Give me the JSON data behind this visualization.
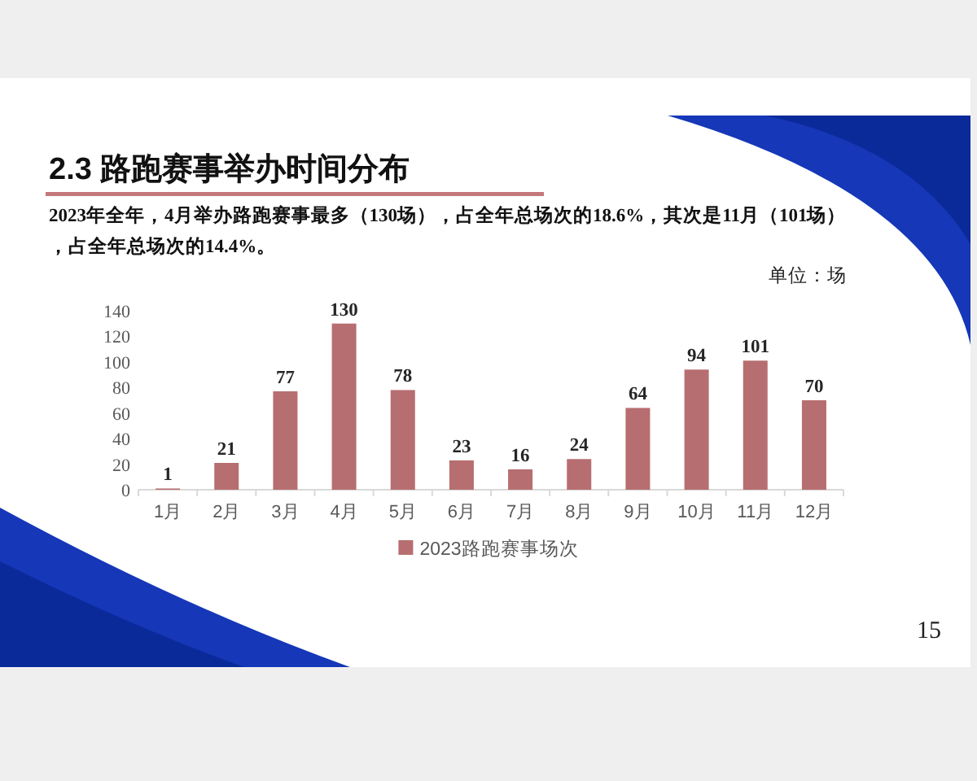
{
  "chart_data": {
    "type": "bar",
    "title": "2.3 路跑赛事举办时间分布",
    "subtitle": "2023年全年，4月举办路跑赛事最多（130场），占全年总场次的18.6%，其次是11月（101场），占全年总场次的14.4%。",
    "annotations": [
      "单位：场",
      "15"
    ],
    "categories": [
      "1月",
      "2月",
      "3月",
      "4月",
      "5月",
      "6月",
      "7月",
      "8月",
      "9月",
      "10月",
      "11月",
      "12月"
    ],
    "series": [
      {
        "name": "2023路跑赛事场次",
        "color": "#b76e70",
        "values": [
          1,
          21,
          77,
          130,
          78,
          23,
          16,
          24,
          64,
          94,
          101,
          70
        ]
      }
    ],
    "ylim": [
      0,
      140
    ],
    "yticks": [
      0,
      20,
      40,
      60,
      80,
      100,
      120,
      140
    ],
    "data_labels": true,
    "legend": "bottom",
    "grid": false
  }
}
